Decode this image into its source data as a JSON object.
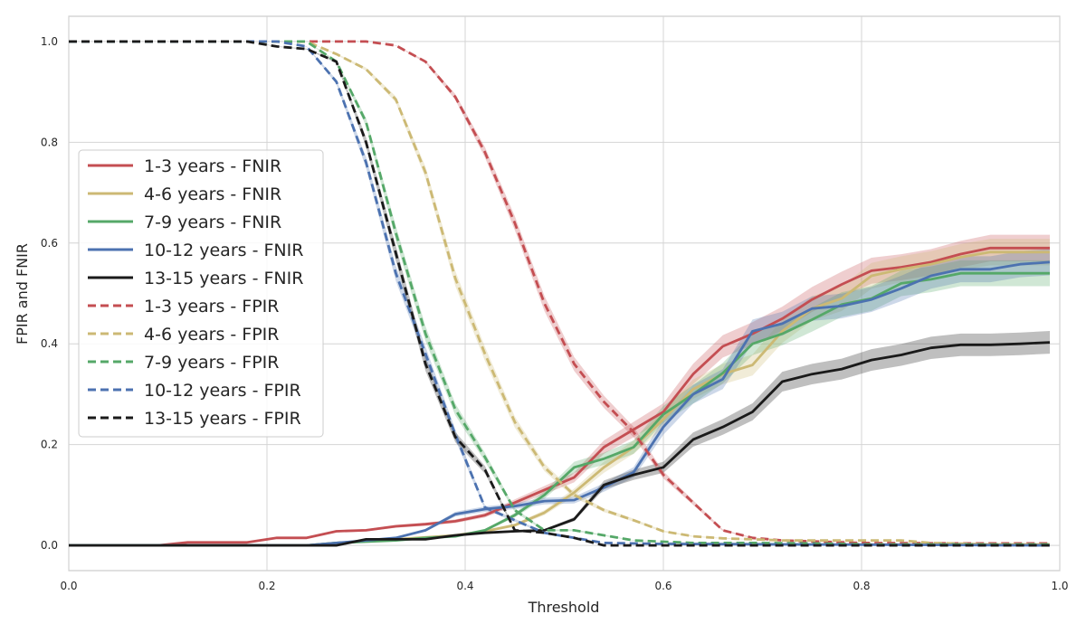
{
  "chart_data": {
    "type": "line",
    "title": "",
    "xlabel": "Threshold",
    "ylabel": "FPIR and FNIR",
    "xlim": [
      0.0,
      1.0
    ],
    "ylim": [
      -0.05,
      1.05
    ],
    "xticks": [
      "0.0",
      "0.2",
      "0.4",
      "0.6",
      "0.8",
      "1.0"
    ],
    "yticks": [
      "0.0",
      "0.2",
      "0.4",
      "0.6",
      "0.8",
      "1.0"
    ],
    "grid": true,
    "legend_position": "center-left",
    "series": [
      {
        "name": "1-3 years - FNIR",
        "color": "#c44e52",
        "dash": false,
        "points": [
          [
            0,
            0
          ],
          [
            0.09,
            0
          ],
          [
            0.12,
            0.006
          ],
          [
            0.18,
            0.006
          ],
          [
            0.21,
            0.015
          ],
          [
            0.24,
            0.015
          ],
          [
            0.27,
            0.028
          ],
          [
            0.3,
            0.03
          ],
          [
            0.33,
            0.038
          ],
          [
            0.36,
            0.042
          ],
          [
            0.39,
            0.048
          ],
          [
            0.42,
            0.06
          ],
          [
            0.45,
            0.085
          ],
          [
            0.48,
            0.11
          ],
          [
            0.51,
            0.135
          ],
          [
            0.54,
            0.195
          ],
          [
            0.57,
            0.23
          ],
          [
            0.6,
            0.265
          ],
          [
            0.63,
            0.34
          ],
          [
            0.66,
            0.395
          ],
          [
            0.69,
            0.42
          ],
          [
            0.72,
            0.45
          ],
          [
            0.75,
            0.488
          ],
          [
            0.78,
            0.518
          ],
          [
            0.81,
            0.545
          ],
          [
            0.84,
            0.552
          ],
          [
            0.87,
            0.562
          ],
          [
            0.9,
            0.578
          ],
          [
            0.93,
            0.59
          ],
          [
            0.96,
            0.59
          ],
          [
            0.99,
            0.59
          ]
        ]
      },
      {
        "name": "4-6 years - FNIR",
        "color": "#ccb974",
        "dash": false,
        "points": [
          [
            0,
            0
          ],
          [
            0.24,
            0
          ],
          [
            0.27,
            0.005
          ],
          [
            0.33,
            0.012
          ],
          [
            0.39,
            0.02
          ],
          [
            0.42,
            0.028
          ],
          [
            0.45,
            0.04
          ],
          [
            0.48,
            0.065
          ],
          [
            0.51,
            0.105
          ],
          [
            0.54,
            0.155
          ],
          [
            0.57,
            0.195
          ],
          [
            0.6,
            0.25
          ],
          [
            0.63,
            0.31
          ],
          [
            0.66,
            0.34
          ],
          [
            0.69,
            0.358
          ],
          [
            0.72,
            0.425
          ],
          [
            0.75,
            0.47
          ],
          [
            0.78,
            0.49
          ],
          [
            0.81,
            0.535
          ],
          [
            0.84,
            0.548
          ],
          [
            0.87,
            0.558
          ],
          [
            0.9,
            0.572
          ],
          [
            0.93,
            0.582
          ],
          [
            0.96,
            0.582
          ],
          [
            0.99,
            0.582
          ]
        ]
      },
      {
        "name": "7-9 years - FNIR",
        "color": "#55a868",
        "dash": false,
        "points": [
          [
            0,
            0
          ],
          [
            0.24,
            0
          ],
          [
            0.27,
            0.005
          ],
          [
            0.33,
            0.01
          ],
          [
            0.36,
            0.015
          ],
          [
            0.39,
            0.018
          ],
          [
            0.42,
            0.03
          ],
          [
            0.45,
            0.06
          ],
          [
            0.48,
            0.1
          ],
          [
            0.51,
            0.155
          ],
          [
            0.54,
            0.172
          ],
          [
            0.57,
            0.195
          ],
          [
            0.6,
            0.26
          ],
          [
            0.63,
            0.3
          ],
          [
            0.66,
            0.342
          ],
          [
            0.69,
            0.4
          ],
          [
            0.72,
            0.42
          ],
          [
            0.75,
            0.448
          ],
          [
            0.78,
            0.478
          ],
          [
            0.81,
            0.49
          ],
          [
            0.84,
            0.52
          ],
          [
            0.87,
            0.528
          ],
          [
            0.9,
            0.54
          ],
          [
            0.93,
            0.54
          ],
          [
            0.96,
            0.54
          ],
          [
            0.99,
            0.54
          ]
        ]
      },
      {
        "name": "10-12 years - FNIR",
        "color": "#4c72b0",
        "dash": false,
        "points": [
          [
            0,
            0
          ],
          [
            0.24,
            0
          ],
          [
            0.27,
            0.005
          ],
          [
            0.3,
            0.01
          ],
          [
            0.33,
            0.015
          ],
          [
            0.36,
            0.03
          ],
          [
            0.39,
            0.062
          ],
          [
            0.42,
            0.072
          ],
          [
            0.45,
            0.078
          ],
          [
            0.48,
            0.088
          ],
          [
            0.51,
            0.09
          ],
          [
            0.54,
            0.115
          ],
          [
            0.57,
            0.145
          ],
          [
            0.6,
            0.235
          ],
          [
            0.63,
            0.3
          ],
          [
            0.66,
            0.33
          ],
          [
            0.69,
            0.425
          ],
          [
            0.72,
            0.44
          ],
          [
            0.75,
            0.47
          ],
          [
            0.78,
            0.475
          ],
          [
            0.81,
            0.488
          ],
          [
            0.84,
            0.51
          ],
          [
            0.87,
            0.535
          ],
          [
            0.9,
            0.548
          ],
          [
            0.93,
            0.548
          ],
          [
            0.96,
            0.558
          ],
          [
            0.99,
            0.562
          ]
        ]
      },
      {
        "name": "13-15 years - FNIR",
        "color": "#1a1a1a",
        "dash": false,
        "points": [
          [
            0,
            0
          ],
          [
            0.27,
            0
          ],
          [
            0.3,
            0.012
          ],
          [
            0.33,
            0.012
          ],
          [
            0.36,
            0.012
          ],
          [
            0.39,
            0.02
          ],
          [
            0.42,
            0.025
          ],
          [
            0.45,
            0.028
          ],
          [
            0.48,
            0.03
          ],
          [
            0.51,
            0.052
          ],
          [
            0.54,
            0.12
          ],
          [
            0.57,
            0.14
          ],
          [
            0.6,
            0.155
          ],
          [
            0.63,
            0.21
          ],
          [
            0.66,
            0.235
          ],
          [
            0.69,
            0.265
          ],
          [
            0.72,
            0.325
          ],
          [
            0.75,
            0.34
          ],
          [
            0.78,
            0.35
          ],
          [
            0.81,
            0.368
          ],
          [
            0.84,
            0.378
          ],
          [
            0.87,
            0.392
          ],
          [
            0.9,
            0.398
          ],
          [
            0.93,
            0.398
          ],
          [
            0.96,
            0.4
          ],
          [
            0.99,
            0.403
          ]
        ]
      },
      {
        "name": "1-3 years - FPIR",
        "color": "#c44e52",
        "dash": true,
        "points": [
          [
            0,
            1
          ],
          [
            0.27,
            1.0
          ],
          [
            0.3,
            1.0
          ],
          [
            0.33,
            0.992
          ],
          [
            0.36,
            0.96
          ],
          [
            0.39,
            0.89
          ],
          [
            0.42,
            0.78
          ],
          [
            0.45,
            0.64
          ],
          [
            0.48,
            0.48
          ],
          [
            0.51,
            0.36
          ],
          [
            0.54,
            0.285
          ],
          [
            0.57,
            0.225
          ],
          [
            0.6,
            0.14
          ],
          [
            0.63,
            0.085
          ],
          [
            0.66,
            0.03
          ],
          [
            0.69,
            0.015
          ],
          [
            0.72,
            0.01
          ],
          [
            0.75,
            0.008
          ],
          [
            0.8,
            0.005
          ],
          [
            0.9,
            0.004
          ],
          [
            0.99,
            0.004
          ]
        ]
      },
      {
        "name": "4-6 years - FPIR",
        "color": "#ccb974",
        "dash": true,
        "points": [
          [
            0,
            1
          ],
          [
            0.24,
            1.0
          ],
          [
            0.27,
            0.975
          ],
          [
            0.3,
            0.945
          ],
          [
            0.33,
            0.885
          ],
          [
            0.36,
            0.74
          ],
          [
            0.39,
            0.53
          ],
          [
            0.42,
            0.38
          ],
          [
            0.45,
            0.245
          ],
          [
            0.48,
            0.155
          ],
          [
            0.51,
            0.1
          ],
          [
            0.54,
            0.07
          ],
          [
            0.57,
            0.05
          ],
          [
            0.6,
            0.028
          ],
          [
            0.63,
            0.018
          ],
          [
            0.66,
            0.014
          ],
          [
            0.69,
            0.012
          ],
          [
            0.72,
            0.01
          ],
          [
            0.78,
            0.01
          ],
          [
            0.84,
            0.01
          ],
          [
            0.87,
            0.005
          ],
          [
            0.93,
            0.002
          ],
          [
            0.99,
            0.002
          ]
        ]
      },
      {
        "name": "7-9 years - FPIR",
        "color": "#55a868",
        "dash": true,
        "points": [
          [
            0,
            1
          ],
          [
            0.24,
            1.0
          ],
          [
            0.27,
            0.96
          ],
          [
            0.3,
            0.84
          ],
          [
            0.33,
            0.62
          ],
          [
            0.36,
            0.42
          ],
          [
            0.39,
            0.27
          ],
          [
            0.42,
            0.175
          ],
          [
            0.45,
            0.07
          ],
          [
            0.48,
            0.03
          ],
          [
            0.51,
            0.03
          ],
          [
            0.54,
            0.02
          ],
          [
            0.57,
            0.01
          ],
          [
            0.63,
            0.005
          ],
          [
            0.69,
            0.005
          ],
          [
            0.75,
            0.004
          ],
          [
            0.81,
            0.002
          ],
          [
            0.99,
            0.002
          ]
        ]
      },
      {
        "name": "10-12 years - FPIR",
        "color": "#4c72b0",
        "dash": true,
        "points": [
          [
            0,
            1
          ],
          [
            0.21,
            1.0
          ],
          [
            0.24,
            0.99
          ],
          [
            0.27,
            0.92
          ],
          [
            0.3,
            0.76
          ],
          [
            0.33,
            0.54
          ],
          [
            0.36,
            0.38
          ],
          [
            0.39,
            0.22
          ],
          [
            0.42,
            0.075
          ],
          [
            0.45,
            0.05
          ],
          [
            0.48,
            0.025
          ],
          [
            0.51,
            0.015
          ],
          [
            0.54,
            0.005
          ],
          [
            0.6,
            0.003
          ],
          [
            0.99,
            0.0
          ]
        ]
      },
      {
        "name": "13-15 years - FPIR",
        "color": "#1a1a1a",
        "dash": true,
        "points": [
          [
            0,
            1
          ],
          [
            0.18,
            1.0
          ],
          [
            0.21,
            0.99
          ],
          [
            0.24,
            0.985
          ],
          [
            0.27,
            0.96
          ],
          [
            0.3,
            0.8
          ],
          [
            0.33,
            0.58
          ],
          [
            0.36,
            0.36
          ],
          [
            0.39,
            0.215
          ],
          [
            0.42,
            0.15
          ],
          [
            0.45,
            0.03
          ],
          [
            0.48,
            0.025
          ],
          [
            0.51,
            0.015
          ],
          [
            0.54,
            0.0
          ],
          [
            0.6,
            0.0
          ],
          [
            0.99,
            0.0
          ]
        ]
      }
    ]
  }
}
